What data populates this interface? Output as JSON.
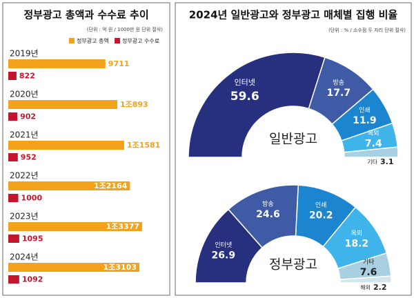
{
  "chart_data": [
    {
      "type": "bar",
      "title": "정부광고 총액과 수수료 추이",
      "subtitle": "(단위 : 억 원 / 1000만 원 단위 절삭)",
      "categories": [
        "2019년",
        "2020년",
        "2021년",
        "2022년",
        "2023년",
        "2024년"
      ],
      "series": [
        {
          "name": "정부광고 총액",
          "color": "#f2a31b",
          "values": [
            9711,
            10893,
            11581,
            12164,
            13377,
            13103
          ],
          "value_labels": [
            "9711",
            "1조893",
            "1조1581",
            "1조2164",
            "1조3377",
            "1조3103"
          ]
        },
        {
          "name": "정부광고 수수료",
          "color": "#c3162e",
          "values": [
            822,
            902,
            952,
            1000,
            1095,
            1092
          ]
        }
      ]
    },
    {
      "type": "donut",
      "title": "2024년 일반광고와 정부광고 매체별 집행 비율",
      "subtitle": "(단위 : % / 소수점 두 자리 단위 절삭)",
      "center_label": "일반광고",
      "categories": [
        "인터넷",
        "방송",
        "인쇄",
        "옥외",
        "기타"
      ],
      "values": [
        59.6,
        17.7,
        11.9,
        7.4,
        3.1
      ],
      "colors": [
        "#27307f",
        "#3f5ba6",
        "#1b86cf",
        "#3fb4ea",
        "#a9cfe2"
      ]
    },
    {
      "type": "donut",
      "center_label": "정부광고",
      "categories": [
        "인터넷",
        "방송",
        "인쇄",
        "옥외",
        "기타",
        "해외"
      ],
      "values": [
        26.9,
        24.6,
        20.2,
        18.2,
        7.6,
        2.2
      ],
      "colors": [
        "#27307f",
        "#3f5ba6",
        "#1b86cf",
        "#3fb4ea",
        "#a9cfe2",
        "#d3e6f0"
      ]
    }
  ]
}
